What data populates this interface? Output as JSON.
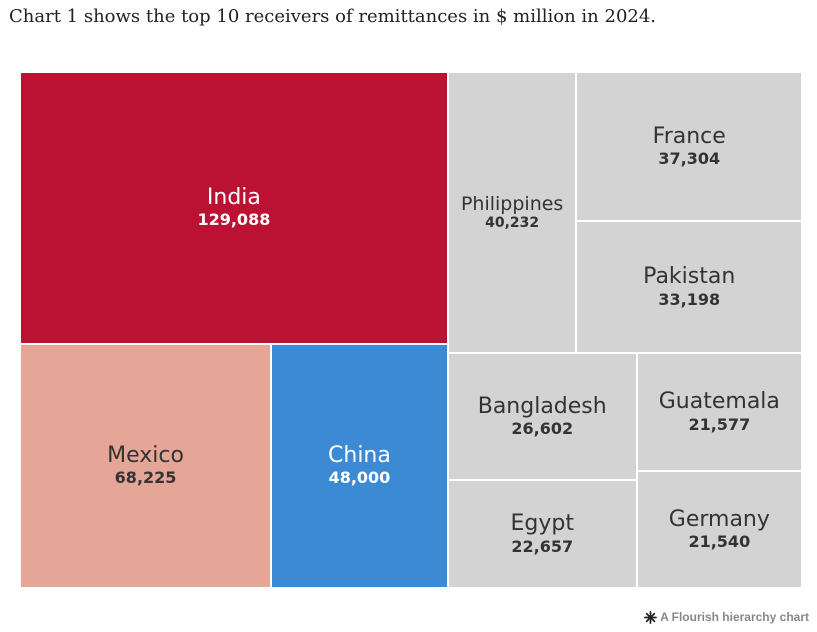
{
  "heading": "Chart 1 shows the top 10 receivers of remittances in $ million in 2024.",
  "footer": {
    "icon": "flourish-star-icon",
    "label": "A Flourish hierarchy chart"
  },
  "colors": {
    "India": "#bb1133",
    "Mexico": "#e5a697",
    "China": "#3d8ad4",
    "other": "#d3d3d3",
    "dark_text": "#333333",
    "light_text": "#ffffff"
  },
  "chart_data": {
    "type": "treemap",
    "title": "",
    "items": [
      {
        "name": "India",
        "value": 129088,
        "label": "129,088"
      },
      {
        "name": "Mexico",
        "value": 68225,
        "label": "68,225"
      },
      {
        "name": "China",
        "value": 48000,
        "label": "48,000"
      },
      {
        "name": "Philippines",
        "value": 40232,
        "label": "40,232"
      },
      {
        "name": "France",
        "value": 37304,
        "label": "37,304"
      },
      {
        "name": "Pakistan",
        "value": 33198,
        "label": "33,198"
      },
      {
        "name": "Bangladesh",
        "value": 26602,
        "label": "26,602"
      },
      {
        "name": "Egypt",
        "value": 22657,
        "label": "22,657"
      },
      {
        "name": "Guatemala",
        "value": 21577,
        "label": "21,577"
      },
      {
        "name": "Germany",
        "value": 21540,
        "label": "21,540"
      }
    ]
  }
}
